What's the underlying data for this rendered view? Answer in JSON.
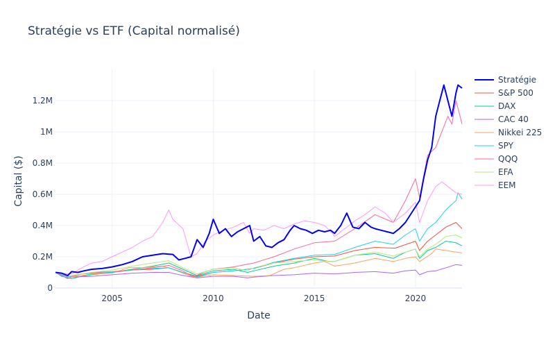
{
  "chart_data": {
    "type": "line",
    "title": "Stratégie vs ETF (Capital normalisé)",
    "xlabel": "Date",
    "ylabel": "Capital ($)",
    "xlim": [
      2002.2,
      2022.3
    ],
    "ylim": [
      0,
      1400000
    ],
    "x_ticks": [
      {
        "value": 2005,
        "label": "2005"
      },
      {
        "value": 2010,
        "label": "2010"
      },
      {
        "value": 2015,
        "label": "2015"
      },
      {
        "value": 2020,
        "label": "2020"
      }
    ],
    "y_ticks": [
      {
        "value": 0,
        "label": "0"
      },
      {
        "value": 200000,
        "label": "0.2M"
      },
      {
        "value": 400000,
        "label": "0.4M"
      },
      {
        "value": 600000,
        "label": "0.6M"
      },
      {
        "value": 800000,
        "label": "0.8M"
      },
      {
        "value": 1000000,
        "label": "1M"
      },
      {
        "value": 1200000,
        "label": "1.2M"
      }
    ],
    "grid": true,
    "legend_position": "right",
    "series": [
      {
        "name": "Stratégie",
        "color": "#0000ff",
        "width": 2,
        "x": [
          2002.2,
          2002.5,
          2002.8,
          2003.0,
          2003.3,
          2003.6,
          2004.0,
          2004.5,
          2005.0,
          2005.5,
          2006.0,
          2006.5,
          2007.0,
          2007.5,
          2008.0,
          2008.3,
          2008.6,
          2008.9,
          2009.2,
          2009.5,
          2009.8,
          2010.0,
          2010.3,
          2010.6,
          2010.9,
          2011.2,
          2011.5,
          2011.8,
          2012.0,
          2012.3,
          2012.6,
          2012.9,
          2013.2,
          2013.5,
          2013.8,
          2014.0,
          2014.3,
          2014.6,
          2014.9,
          2015.2,
          2015.5,
          2015.8,
          2016.0,
          2016.3,
          2016.6,
          2016.9,
          2017.2,
          2017.5,
          2017.8,
          2018.0,
          2018.3,
          2018.6,
          2018.9,
          2019.2,
          2019.5,
          2019.8,
          2020.0,
          2020.2,
          2020.4,
          2020.6,
          2020.8,
          2021.0,
          2021.2,
          2021.4,
          2021.6,
          2021.8,
          2022.0,
          2022.1,
          2022.3
        ],
        "y": [
          100000,
          95000,
          80000,
          105000,
          100000,
          110000,
          120000,
          125000,
          135000,
          150000,
          170000,
          200000,
          210000,
          220000,
          215000,
          180000,
          190000,
          200000,
          310000,
          260000,
          350000,
          440000,
          350000,
          380000,
          330000,
          360000,
          380000,
          400000,
          300000,
          330000,
          270000,
          260000,
          290000,
          310000,
          370000,
          400000,
          380000,
          370000,
          350000,
          370000,
          360000,
          370000,
          350000,
          400000,
          480000,
          390000,
          380000,
          420000,
          390000,
          380000,
          370000,
          360000,
          350000,
          380000,
          420000,
          480000,
          520000,
          560000,
          700000,
          820000,
          900000,
          1100000,
          1200000,
          1300000,
          1200000,
          1100000,
          1250000,
          1300000,
          1280000
        ]
      },
      {
        "name": "S&P 500",
        "color": "#ef553b",
        "width": 1,
        "x": [
          2002.2,
          2002.5,
          2002.8,
          2003.0,
          2003.5,
          2004.0,
          2005.0,
          2006.0,
          2007.0,
          2007.8,
          2008.5,
          2009.2,
          2010.0,
          2011.0,
          2012.0,
          2013.0,
          2014.0,
          2015.0,
          2016.0,
          2017.0,
          2018.0,
          2019.0,
          2020.0,
          2020.2,
          2020.6,
          2021.0,
          2021.5,
          2022.0,
          2022.3
        ],
        "y": [
          100000,
          90000,
          75000,
          78000,
          90000,
          95000,
          100000,
          115000,
          120000,
          130000,
          100000,
          75000,
          100000,
          110000,
          125000,
          160000,
          185000,
          200000,
          205000,
          240000,
          260000,
          255000,
          300000,
          240000,
          300000,
          340000,
          390000,
          420000,
          380000
        ]
      },
      {
        "name": "DAX",
        "color": "#00cc96",
        "width": 1,
        "x": [
          2002.2,
          2002.5,
          2003.0,
          2003.5,
          2004.0,
          2005.0,
          2006.0,
          2007.0,
          2007.8,
          2008.5,
          2009.2,
          2010.0,
          2011.0,
          2011.7,
          2012.0,
          2013.0,
          2014.0,
          2015.0,
          2015.7,
          2016.0,
          2017.0,
          2018.0,
          2018.9,
          2019.5,
          2020.0,
          2020.2,
          2020.6,
          2021.0,
          2021.5,
          2022.0,
          2022.3
        ],
        "y": [
          100000,
          75000,
          60000,
          75000,
          85000,
          100000,
          120000,
          140000,
          160000,
          120000,
          80000,
          110000,
          120000,
          100000,
          110000,
          140000,
          160000,
          190000,
          170000,
          170000,
          210000,
          220000,
          190000,
          230000,
          250000,
          190000,
          240000,
          260000,
          300000,
          290000,
          270000
        ]
      },
      {
        "name": "CAC 40",
        "color": "#ab63fa",
        "width": 1,
        "x": [
          2002.2,
          2002.5,
          2003.0,
          2004.0,
          2005.0,
          2006.0,
          2007.0,
          2007.8,
          2008.5,
          2009.2,
          2010.0,
          2011.0,
          2011.7,
          2012.0,
          2013.0,
          2014.0,
          2015.0,
          2016.0,
          2017.0,
          2018.0,
          2018.9,
          2019.5,
          2020.0,
          2020.2,
          2020.6,
          2021.0,
          2021.5,
          2022.0,
          2022.3
        ],
        "y": [
          100000,
          80000,
          70000,
          75000,
          85000,
          95000,
          100000,
          100000,
          80000,
          65000,
          75000,
          75000,
          65000,
          70000,
          80000,
          85000,
          95000,
          90000,
          100000,
          105000,
          95000,
          110000,
          115000,
          85000,
          105000,
          110000,
          130000,
          150000,
          145000
        ]
      },
      {
        "name": "Nikkei 225",
        "color": "#ffa15a",
        "width": 1,
        "x": [
          2002.2,
          2002.5,
          2003.0,
          2003.5,
          2004.0,
          2005.0,
          2005.8,
          2006.5,
          2007.5,
          2008.0,
          2008.8,
          2009.2,
          2010.0,
          2011.0,
          2012.0,
          2012.8,
          2013.5,
          2014.0,
          2015.0,
          2015.5,
          2016.0,
          2017.0,
          2018.0,
          2018.9,
          2019.5,
          2020.0,
          2020.2,
          2020.8,
          2021.0,
          2021.5,
          2022.0,
          2022.3
        ],
        "y": [
          100000,
          85000,
          70000,
          80000,
          90000,
          95000,
          130000,
          130000,
          140000,
          120000,
          80000,
          70000,
          85000,
          80000,
          75000,
          80000,
          120000,
          130000,
          160000,
          170000,
          140000,
          160000,
          190000,
          170000,
          190000,
          200000,
          170000,
          220000,
          250000,
          240000,
          230000,
          225000
        ]
      },
      {
        "name": "SPY",
        "color": "#19d3f3",
        "width": 1,
        "x": [
          2002.2,
          2002.5,
          2002.8,
          2003.0,
          2003.5,
          2004.0,
          2005.0,
          2006.0,
          2007.0,
          2007.8,
          2008.5,
          2009.2,
          2010.0,
          2011.0,
          2012.0,
          2013.0,
          2014.0,
          2015.0,
          2016.0,
          2017.0,
          2018.0,
          2018.9,
          2019.5,
          2020.0,
          2020.2,
          2020.6,
          2021.0,
          2021.5,
          2022.0,
          2022.1,
          2022.3
        ],
        "y": [
          100000,
          85000,
          70000,
          75000,
          90000,
          95000,
          100000,
          115000,
          125000,
          130000,
          100000,
          70000,
          100000,
          110000,
          125000,
          165000,
          190000,
          210000,
          215000,
          260000,
          300000,
          280000,
          340000,
          380000,
          300000,
          380000,
          420000,
          500000,
          560000,
          610000,
          570000
        ]
      },
      {
        "name": "QQQ",
        "color": "#ff6692",
        "width": 1,
        "x": [
          2002.2,
          2002.5,
          2002.8,
          2003.0,
          2003.5,
          2004.0,
          2005.0,
          2006.0,
          2007.0,
          2007.8,
          2008.5,
          2009.0,
          2009.5,
          2010.0,
          2011.0,
          2012.0,
          2013.0,
          2014.0,
          2015.0,
          2016.0,
          2017.0,
          2018.0,
          2018.9,
          2019.5,
          2020.0,
          2020.2,
          2020.6,
          2021.0,
          2021.3,
          2021.6,
          2021.8,
          2022.0,
          2022.3
        ],
        "y": [
          100000,
          80000,
          60000,
          70000,
          90000,
          100000,
          105000,
          115000,
          130000,
          145000,
          110000,
          70000,
          100000,
          120000,
          135000,
          160000,
          200000,
          250000,
          290000,
          300000,
          380000,
          470000,
          420000,
          560000,
          700000,
          580000,
          850000,
          900000,
          1000000,
          1100000,
          1050000,
          1200000,
          1050000
        ]
      },
      {
        "name": "EFA",
        "color": "#b6e880",
        "width": 1,
        "x": [
          2002.2,
          2002.5,
          2003.0,
          2003.5,
          2004.0,
          2005.0,
          2006.0,
          2007.0,
          2007.8,
          2008.5,
          2009.2,
          2010.0,
          2011.0,
          2011.7,
          2012.0,
          2013.0,
          2014.0,
          2015.0,
          2015.7,
          2016.0,
          2017.0,
          2018.0,
          2018.9,
          2019.5,
          2020.0,
          2020.2,
          2020.6,
          2021.0,
          2021.5,
          2022.0,
          2022.3
        ],
        "y": [
          100000,
          90000,
          75000,
          90000,
          100000,
          115000,
          140000,
          160000,
          175000,
          130000,
          90000,
          120000,
          130000,
          110000,
          130000,
          160000,
          170000,
          180000,
          170000,
          170000,
          210000,
          230000,
          205000,
          230000,
          250000,
          200000,
          250000,
          280000,
          330000,
          340000,
          320000
        ]
      },
      {
        "name": "EEM",
        "color": "#ff97ff",
        "width": 1,
        "x": [
          2002.2,
          2002.5,
          2003.0,
          2003.5,
          2004.0,
          2004.5,
          2005.0,
          2005.5,
          2006.0,
          2006.5,
          2007.0,
          2007.5,
          2007.8,
          2008.0,
          2008.5,
          2008.9,
          2009.2,
          2009.6,
          2010.0,
          2010.5,
          2011.0,
          2011.5,
          2011.8,
          2012.0,
          2012.5,
          2013.0,
          2013.5,
          2014.0,
          2014.5,
          2015.0,
          2015.5,
          2015.9,
          2016.0,
          2016.5,
          2017.0,
          2017.5,
          2018.0,
          2018.5,
          2018.9,
          2019.5,
          2020.0,
          2020.2,
          2020.6,
          2021.0,
          2021.3,
          2021.6,
          2022.0,
          2022.3
        ],
        "y": [
          100000,
          95000,
          90000,
          130000,
          160000,
          170000,
          200000,
          230000,
          260000,
          300000,
          330000,
          420000,
          500000,
          440000,
          380000,
          200000,
          220000,
          300000,
          340000,
          370000,
          390000,
          420000,
          350000,
          380000,
          370000,
          400000,
          380000,
          410000,
          430000,
          420000,
          400000,
          350000,
          330000,
          380000,
          430000,
          470000,
          520000,
          480000,
          420000,
          480000,
          550000,
          420000,
          560000,
          650000,
          680000,
          650000,
          610000,
          600000
        ]
      }
    ]
  }
}
